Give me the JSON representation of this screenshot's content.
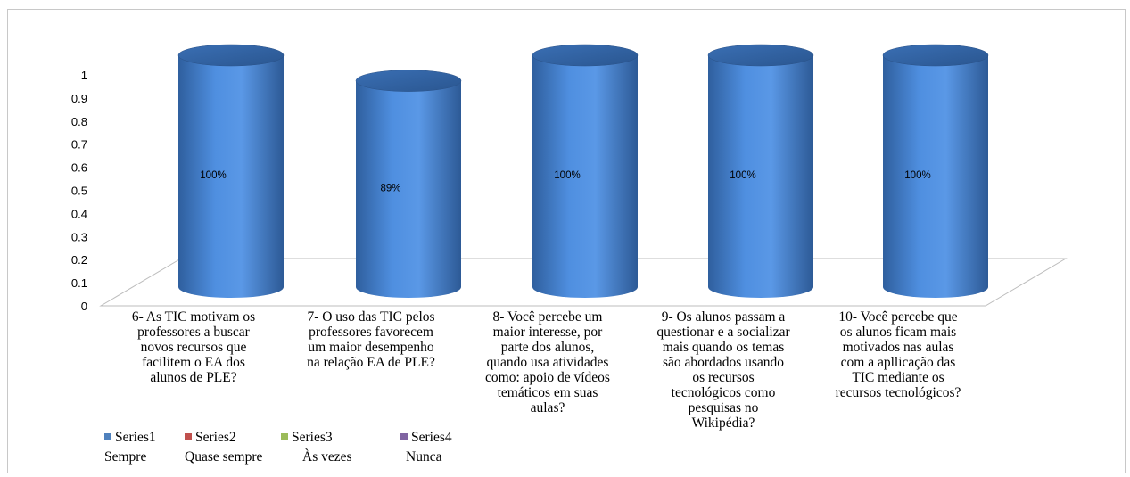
{
  "chart_data": {
    "type": "bar",
    "style": "3d-cylinder",
    "categories": [
      "6- As TIC motivam os professores a buscar novos recursos que facilitem o EA dos alunos de PLE?",
      "7- O uso das TIC pelos professores favorecem um maior desempenho na relação EA de PLE?",
      "8- Você percebe um maior interesse, por parte dos alunos, quando usa atividades como: apoio de vídeos temáticos em suas aulas?",
      "9- Os alunos passam a questionar e a socializar mais quando os temas são abordados usando os recursos tecnológicos como pesquisas no Wikipédia?",
      "10- Você percebe que os alunos ficam mais motivados nas aulas com a apllicação das TIC mediante os recursos tecnológicos?"
    ],
    "category_lines": [
      [
        "6- As TIC motivam os",
        "professores a buscar",
        "novos recursos que",
        "facilitem o EA dos",
        "alunos de PLE?"
      ],
      [
        "7- O uso das TIC pelos",
        "professores favorecem",
        "um maior desempenho",
        "na relação EA de PLE?"
      ],
      [
        "8- Você percebe um",
        "maior interesse, por",
        "parte dos alunos,",
        "quando usa atividades",
        "como: apoio de vídeos",
        "temáticos em suas",
        "aulas?"
      ],
      [
        "9- Os alunos passam a",
        "questionar e a socializar",
        "mais quando os temas",
        "são abordados usando",
        "os recursos",
        "tecnológicos como",
        "pesquisas no",
        "Wikipédia?"
      ],
      [
        "10- Você percebe que",
        "os alunos ficam mais",
        "motivados nas aulas",
        "com a apllicação das",
        "TIC mediante os",
        "recursos tecnológicos?"
      ]
    ],
    "series": [
      {
        "name": "Series1",
        "values": [
          1.0,
          0.89,
          1.0,
          1.0,
          1.0
        ],
        "color": "#4f81bd",
        "data_labels": [
          "100%",
          "89%",
          "100%",
          "100%",
          "100%"
        ]
      },
      {
        "name": "Series2",
        "values": [
          0,
          0,
          0,
          0,
          0
        ],
        "color": "#c0504d"
      },
      {
        "name": "Series3",
        "values": [
          0,
          0,
          0,
          0,
          0
        ],
        "color": "#9bbb59"
      },
      {
        "name": "Series4",
        "values": [
          0,
          0,
          0,
          0,
          0
        ],
        "color": "#8064a2"
      }
    ],
    "legend_sublabels": [
      "Sempre",
      "Quase sempre",
      "Às vezes",
      "Nunca"
    ],
    "ylim": [
      0,
      1
    ],
    "yticks": [
      "0",
      "0.1",
      "0.2",
      "0.3",
      "0.4",
      "0.5",
      "0.6",
      "0.7",
      "0.8",
      "0.9",
      "1"
    ],
    "legend_position": "bottom-left",
    "grid": false
  }
}
